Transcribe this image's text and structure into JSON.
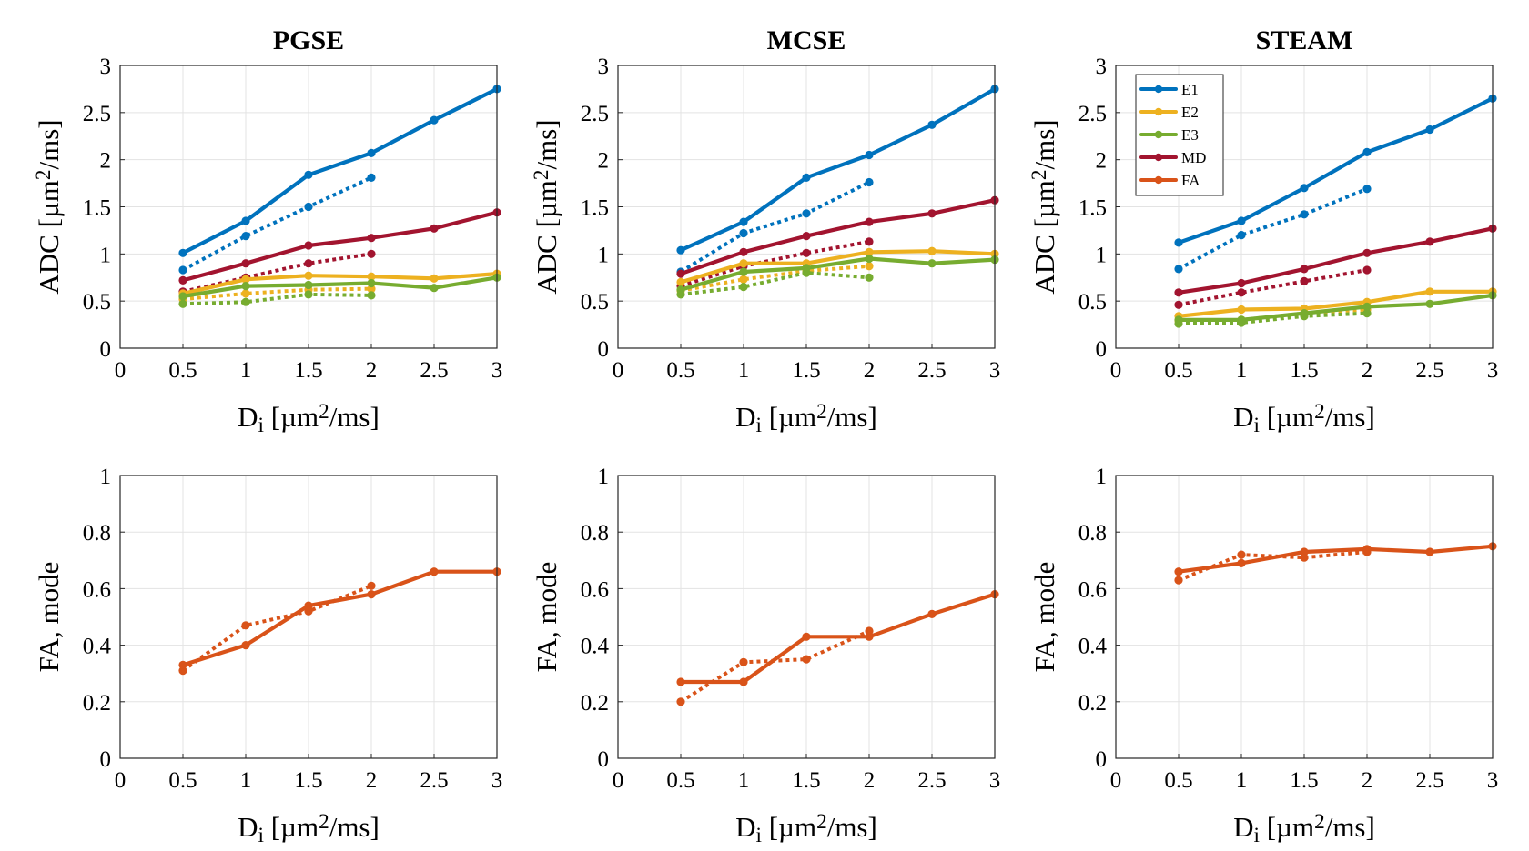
{
  "figure": {
    "legend": {
      "placement": "top-left of STEAM ADC panel",
      "entries": [
        {
          "label": "E1",
          "color": "#0072BD"
        },
        {
          "label": "E2",
          "color": "#EDB120"
        },
        {
          "label": "E3",
          "color": "#77AC30"
        },
        {
          "label": "MD",
          "color": "#A2142F"
        },
        {
          "label": "FA",
          "color": "#D95319"
        }
      ]
    },
    "note": "Solid lines and dotted lines are two variants of each series (dotted variant spans Di 0.5-2)."
  },
  "chart_data": [
    {
      "type": "line",
      "panel": "PGSE-ADC",
      "title": "PGSE",
      "xlabel": "D_i [µm²/ms]",
      "ylabel": "ADC [µm²/ms]",
      "xlim": [
        0,
        3
      ],
      "ylim": [
        0,
        3
      ],
      "xticks": [
        "0",
        "0.5",
        "1",
        "1.5",
        "2",
        "2.5",
        "3"
      ],
      "yticks": [
        "0",
        "0.5",
        "1",
        "1.5",
        "2",
        "2.5",
        "3"
      ],
      "grid": true,
      "series": [
        {
          "name": "E1",
          "style": "solid",
          "color": "#0072BD",
          "x": [
            0.5,
            1,
            1.5,
            2,
            2.5,
            3
          ],
          "y": [
            1.01,
            1.35,
            1.84,
            2.07,
            2.42,
            2.75
          ]
        },
        {
          "name": "E1",
          "style": "dotted",
          "color": "#0072BD",
          "x": [
            0.5,
            1,
            1.5,
            2
          ],
          "y": [
            0.83,
            1.19,
            1.5,
            1.81
          ]
        },
        {
          "name": "E2",
          "style": "solid",
          "color": "#EDB120",
          "x": [
            0.5,
            1,
            1.5,
            2,
            2.5,
            3
          ],
          "y": [
            0.58,
            0.73,
            0.77,
            0.76,
            0.74,
            0.79
          ]
        },
        {
          "name": "E2",
          "style": "dotted",
          "color": "#EDB120",
          "x": [
            0.5,
            1,
            1.5,
            2
          ],
          "y": [
            0.52,
            0.58,
            0.62,
            0.63
          ]
        },
        {
          "name": "E3",
          "style": "solid",
          "color": "#77AC30",
          "x": [
            0.5,
            1,
            1.5,
            2,
            2.5,
            3
          ],
          "y": [
            0.55,
            0.66,
            0.67,
            0.69,
            0.64,
            0.75
          ]
        },
        {
          "name": "E3",
          "style": "dotted",
          "color": "#77AC30",
          "x": [
            0.5,
            1,
            1.5,
            2
          ],
          "y": [
            0.47,
            0.49,
            0.57,
            0.56
          ]
        },
        {
          "name": "MD",
          "style": "solid",
          "color": "#A2142F",
          "x": [
            0.5,
            1,
            1.5,
            2,
            2.5,
            3
          ],
          "y": [
            0.72,
            0.9,
            1.09,
            1.17,
            1.27,
            1.44
          ]
        },
        {
          "name": "MD",
          "style": "dotted",
          "color": "#A2142F",
          "x": [
            0.5,
            1,
            1.5,
            2
          ],
          "y": [
            0.6,
            0.75,
            0.9,
            1.0
          ]
        }
      ]
    },
    {
      "type": "line",
      "panel": "MCSE-ADC",
      "title": "MCSE",
      "xlabel": "D_i [µm²/ms]",
      "ylabel": "ADC [µm²/ms]",
      "xlim": [
        0,
        3
      ],
      "ylim": [
        0,
        3
      ],
      "xticks": [
        "0",
        "0.5",
        "1",
        "1.5",
        "2",
        "2.5",
        "3"
      ],
      "yticks": [
        "0",
        "0.5",
        "1",
        "1.5",
        "2",
        "2.5",
        "3"
      ],
      "grid": true,
      "series": [
        {
          "name": "E1",
          "style": "solid",
          "color": "#0072BD",
          "x": [
            0.5,
            1,
            1.5,
            2,
            2.5,
            3
          ],
          "y": [
            1.04,
            1.34,
            1.81,
            2.05,
            2.37,
            2.75
          ]
        },
        {
          "name": "E1",
          "style": "dotted",
          "color": "#0072BD",
          "x": [
            0.5,
            1,
            1.5,
            2
          ],
          "y": [
            0.81,
            1.22,
            1.43,
            1.76
          ]
        },
        {
          "name": "E2",
          "style": "solid",
          "color": "#EDB120",
          "x": [
            0.5,
            1,
            1.5,
            2,
            2.5,
            3
          ],
          "y": [
            0.7,
            0.9,
            0.9,
            1.02,
            1.03,
            1.0
          ]
        },
        {
          "name": "E2",
          "style": "dotted",
          "color": "#EDB120",
          "x": [
            0.5,
            1,
            1.5,
            2
          ],
          "y": [
            0.61,
            0.73,
            0.82,
            0.87
          ]
        },
        {
          "name": "E3",
          "style": "solid",
          "color": "#77AC30",
          "x": [
            0.5,
            1,
            1.5,
            2,
            2.5,
            3
          ],
          "y": [
            0.62,
            0.81,
            0.85,
            0.95,
            0.9,
            0.94
          ]
        },
        {
          "name": "E3",
          "style": "dotted",
          "color": "#77AC30",
          "x": [
            0.5,
            1,
            1.5,
            2
          ],
          "y": [
            0.57,
            0.65,
            0.8,
            0.75
          ]
        },
        {
          "name": "MD",
          "style": "solid",
          "color": "#A2142F",
          "x": [
            0.5,
            1,
            1.5,
            2,
            2.5,
            3
          ],
          "y": [
            0.79,
            1.02,
            1.19,
            1.34,
            1.43,
            1.57
          ]
        },
        {
          "name": "MD",
          "style": "dotted",
          "color": "#A2142F",
          "x": [
            0.5,
            1,
            1.5,
            2
          ],
          "y": [
            0.66,
            0.87,
            1.01,
            1.13
          ]
        }
      ]
    },
    {
      "type": "line",
      "panel": "STEAM-ADC",
      "title": "STEAM",
      "xlabel": "D_i [µm²/ms]",
      "ylabel": "ADC [µm²/ms]",
      "xlim": [
        0,
        3
      ],
      "ylim": [
        0,
        3
      ],
      "xticks": [
        "0",
        "0.5",
        "1",
        "1.5",
        "2",
        "2.5",
        "3"
      ],
      "yticks": [
        "0",
        "0.5",
        "1",
        "1.5",
        "2",
        "2.5",
        "3"
      ],
      "grid": true,
      "series": [
        {
          "name": "E1",
          "style": "solid",
          "color": "#0072BD",
          "x": [
            0.5,
            1,
            1.5,
            2,
            2.5,
            3
          ],
          "y": [
            1.12,
            1.35,
            1.7,
            2.08,
            2.32,
            2.65
          ]
        },
        {
          "name": "E1",
          "style": "dotted",
          "color": "#0072BD",
          "x": [
            0.5,
            1,
            1.5,
            2
          ],
          "y": [
            0.84,
            1.2,
            1.42,
            1.69
          ]
        },
        {
          "name": "E2",
          "style": "solid",
          "color": "#EDB120",
          "x": [
            0.5,
            1,
            1.5,
            2,
            2.5,
            3
          ],
          "y": [
            0.34,
            0.41,
            0.42,
            0.49,
            0.6,
            0.6
          ]
        },
        {
          "name": "E2",
          "style": "dotted",
          "color": "#EDB120",
          "x": [
            0.5,
            1,
            1.5,
            2
          ],
          "y": [
            0.29,
            0.3,
            0.37,
            0.41
          ]
        },
        {
          "name": "E3",
          "style": "solid",
          "color": "#77AC30",
          "x": [
            0.5,
            1,
            1.5,
            2,
            2.5,
            3
          ],
          "y": [
            0.3,
            0.3,
            0.37,
            0.44,
            0.47,
            0.56
          ]
        },
        {
          "name": "E3",
          "style": "dotted",
          "color": "#77AC30",
          "x": [
            0.5,
            1,
            1.5,
            2
          ],
          "y": [
            0.26,
            0.27,
            0.34,
            0.37
          ]
        },
        {
          "name": "MD",
          "style": "solid",
          "color": "#A2142F",
          "x": [
            0.5,
            1,
            1.5,
            2,
            2.5,
            3
          ],
          "y": [
            0.59,
            0.69,
            0.84,
            1.01,
            1.13,
            1.27
          ]
        },
        {
          "name": "MD",
          "style": "dotted",
          "color": "#A2142F",
          "x": [
            0.5,
            1,
            1.5,
            2
          ],
          "y": [
            0.46,
            0.59,
            0.71,
            0.83
          ]
        }
      ]
    },
    {
      "type": "line",
      "panel": "PGSE-FA",
      "title": "",
      "xlabel": "D_i [µm²/ms]",
      "ylabel": "FA, mode",
      "xlim": [
        0,
        3
      ],
      "ylim": [
        0,
        1
      ],
      "xticks": [
        "0",
        "0.5",
        "1",
        "1.5",
        "2",
        "2.5",
        "3"
      ],
      "yticks": [
        "0",
        "0.2",
        "0.4",
        "0.6",
        "0.8",
        "1"
      ],
      "grid": true,
      "series": [
        {
          "name": "FA",
          "style": "solid",
          "color": "#D95319",
          "x": [
            0.5,
            1,
            1.5,
            2,
            2.5,
            3
          ],
          "y": [
            0.33,
            0.4,
            0.54,
            0.58,
            0.66,
            0.66
          ]
        },
        {
          "name": "FA",
          "style": "dotted",
          "color": "#D95319",
          "x": [
            0.5,
            1,
            1.5,
            2
          ],
          "y": [
            0.31,
            0.47,
            0.52,
            0.61
          ]
        }
      ]
    },
    {
      "type": "line",
      "panel": "MCSE-FA",
      "title": "",
      "xlabel": "D_i [µm²/ms]",
      "ylabel": "FA, mode",
      "xlim": [
        0,
        3
      ],
      "ylim": [
        0,
        1
      ],
      "xticks": [
        "0",
        "0.5",
        "1",
        "1.5",
        "2",
        "2.5",
        "3"
      ],
      "yticks": [
        "0",
        "0.2",
        "0.4",
        "0.6",
        "0.8",
        "1"
      ],
      "grid": true,
      "series": [
        {
          "name": "FA",
          "style": "solid",
          "color": "#D95319",
          "x": [
            0.5,
            1,
            1.5,
            2,
            2.5,
            3
          ],
          "y": [
            0.27,
            0.27,
            0.43,
            0.43,
            0.51,
            0.58
          ]
        },
        {
          "name": "FA",
          "style": "dotted",
          "color": "#D95319",
          "x": [
            0.5,
            1,
            1.5,
            2
          ],
          "y": [
            0.2,
            0.34,
            0.35,
            0.45
          ]
        }
      ]
    },
    {
      "type": "line",
      "panel": "STEAM-FA",
      "title": "",
      "xlabel": "D_i [µm²/ms]",
      "ylabel": "FA, mode",
      "xlim": [
        0,
        3
      ],
      "ylim": [
        0,
        1
      ],
      "xticks": [
        "0",
        "0.5",
        "1",
        "1.5",
        "2",
        "2.5",
        "3"
      ],
      "yticks": [
        "0",
        "0.2",
        "0.4",
        "0.6",
        "0.8",
        "1"
      ],
      "grid": true,
      "series": [
        {
          "name": "FA",
          "style": "solid",
          "color": "#D95319",
          "x": [
            0.5,
            1,
            1.5,
            2,
            2.5,
            3
          ],
          "y": [
            0.66,
            0.69,
            0.73,
            0.74,
            0.73,
            0.75
          ]
        },
        {
          "name": "FA",
          "style": "dotted",
          "color": "#D95319",
          "x": [
            0.5,
            1,
            1.5,
            2
          ],
          "y": [
            0.63,
            0.72,
            0.71,
            0.73
          ]
        }
      ]
    }
  ]
}
